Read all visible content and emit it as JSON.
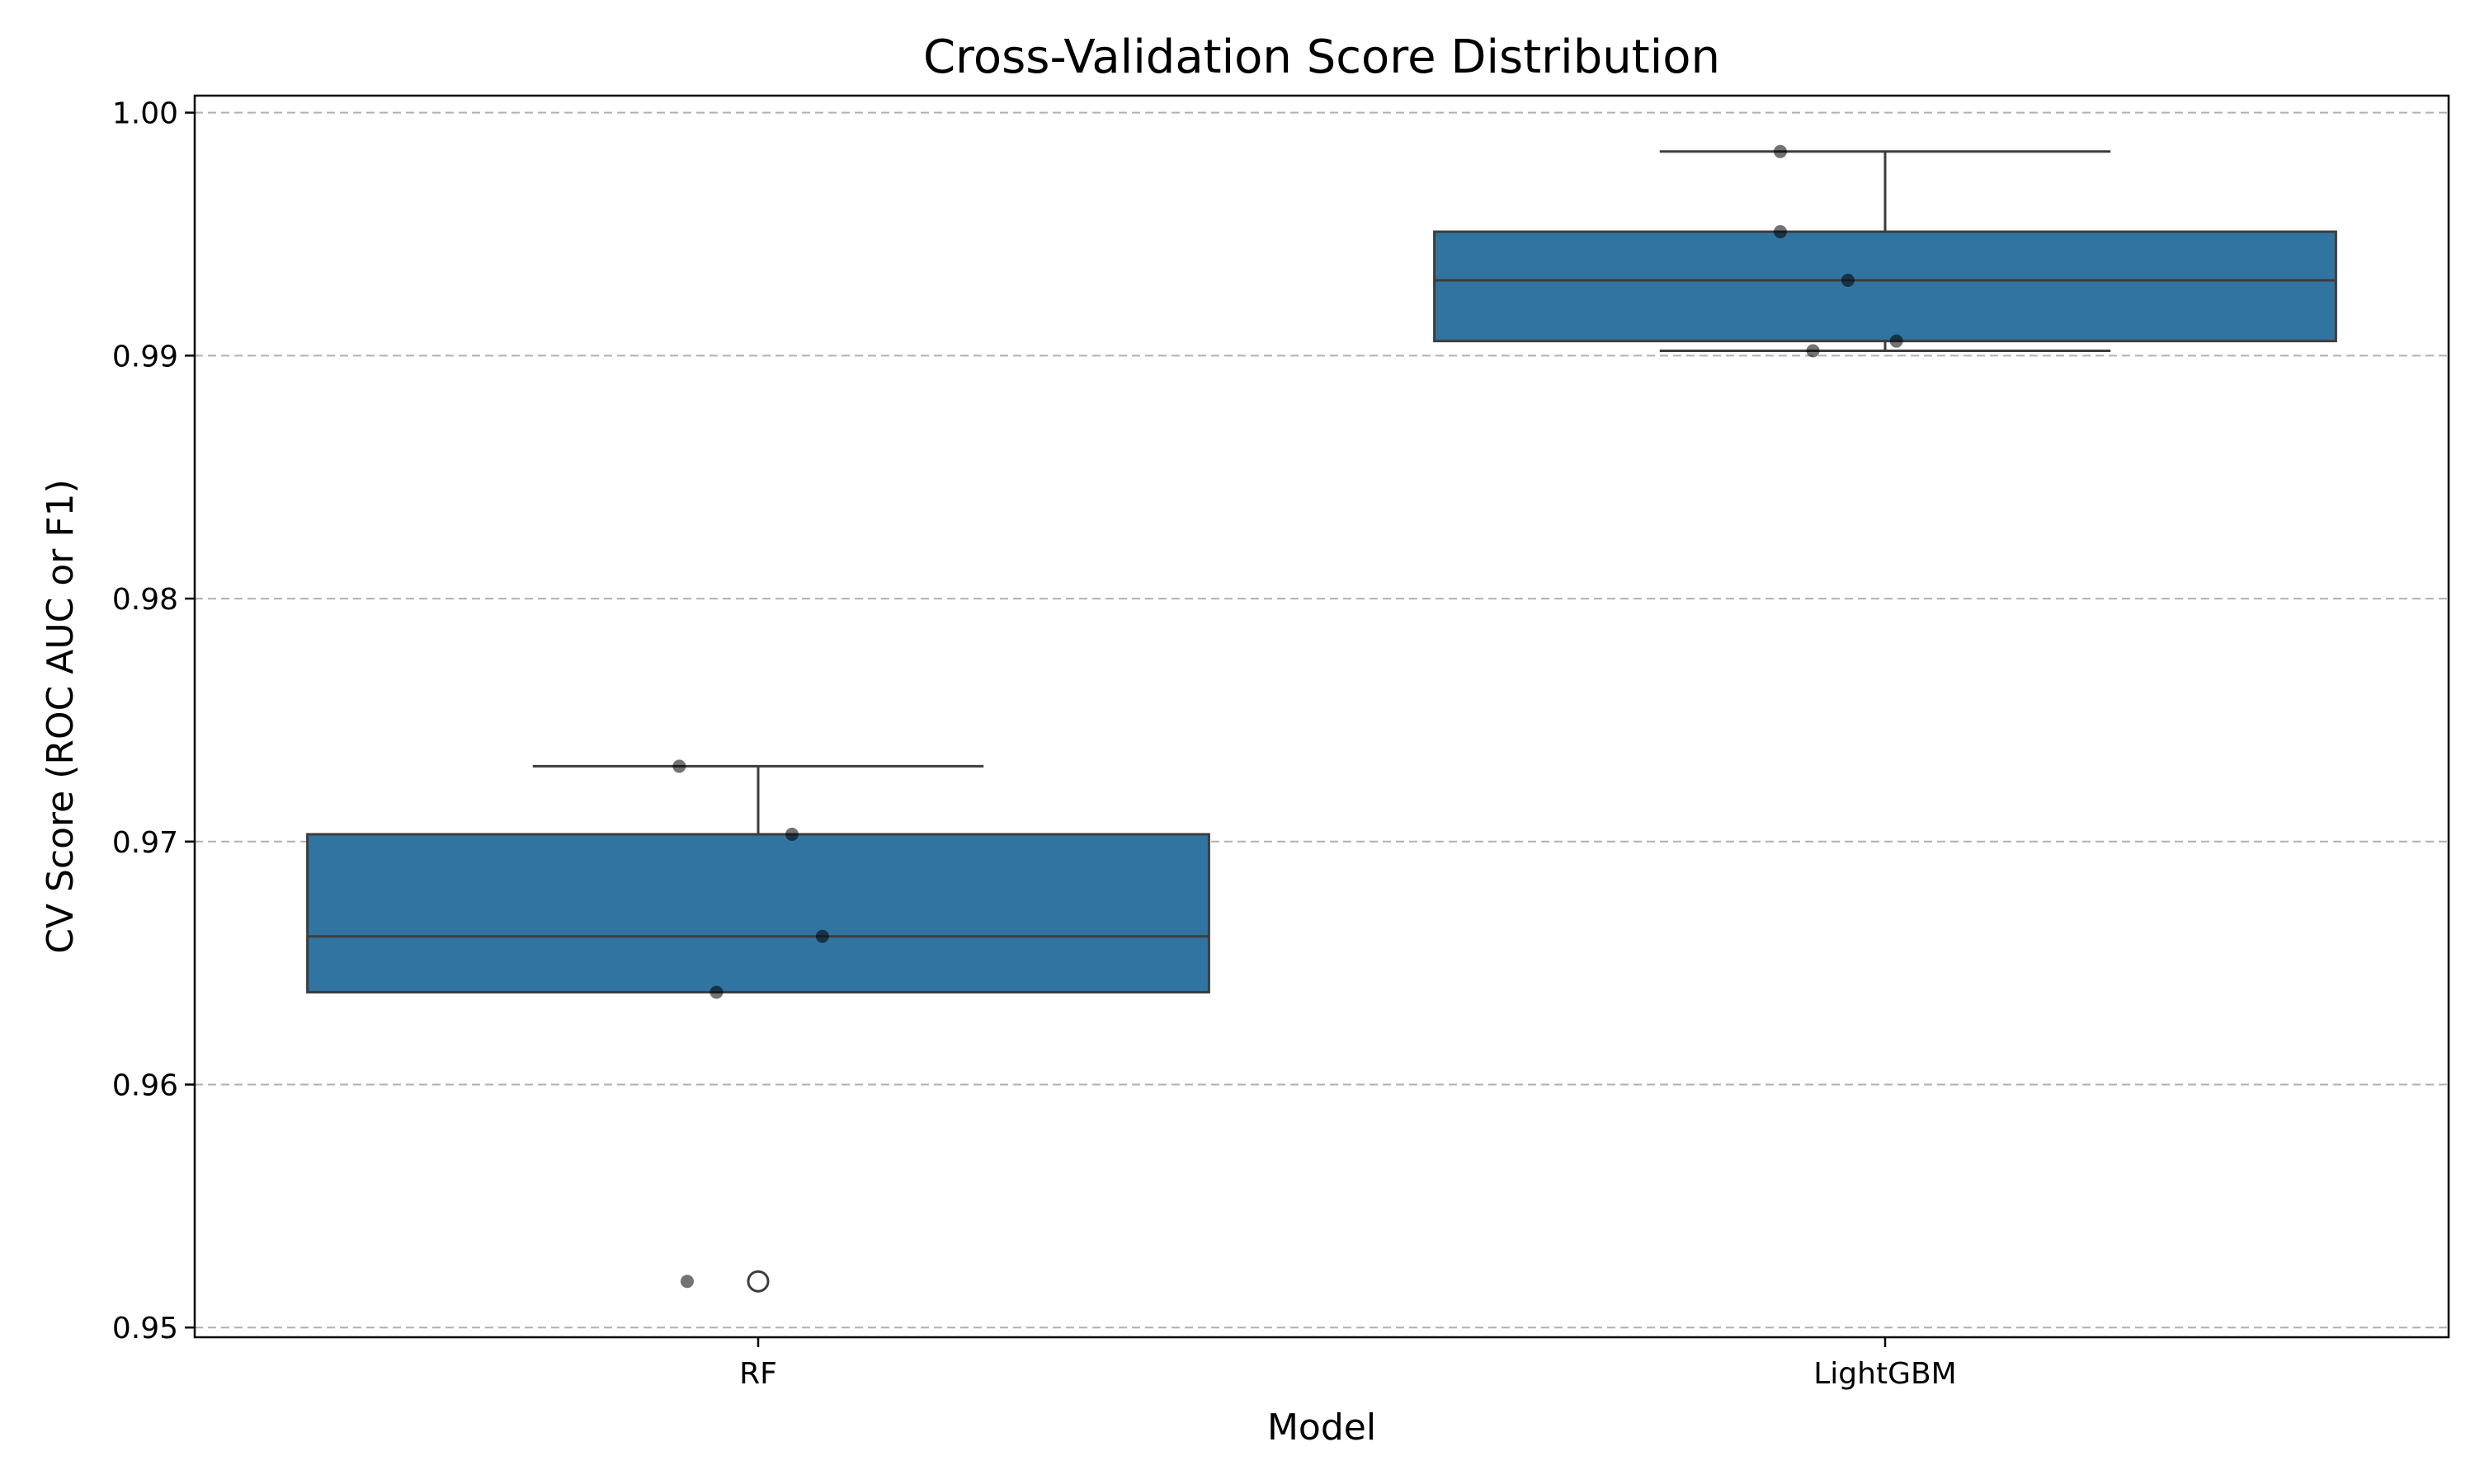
{
  "chart_data": {
    "type": "box",
    "title": "Cross-Validation Score Distribution",
    "xlabel": "Model",
    "ylabel": "CV Score (ROC AUC or F1)",
    "ylim": [
      0.9496,
      1.0007
    ],
    "yticks": [
      0.95,
      0.96,
      0.97,
      0.98,
      0.99,
      1.0
    ],
    "ytick_labels": [
      "0.95",
      "0.96",
      "0.97",
      "0.98",
      "0.99",
      "1.00"
    ],
    "grid": "y, dashed",
    "box_color": "#3274a1",
    "categories": [
      "RF",
      "LightGBM"
    ],
    "boxes": [
      {
        "name": "RF",
        "q1": 0.9638,
        "median": 0.9661,
        "q3": 0.9703,
        "whisker_low": 0.9638,
        "whisker_high": 0.9731,
        "outliers": [
          0.9519
        ],
        "points": [
          0.9731,
          0.9703,
          0.9661,
          0.9638,
          0.9519
        ]
      },
      {
        "name": "LightGBM",
        "q1": 0.9906,
        "median": 0.9931,
        "q3": 0.9951,
        "whisker_low": 0.9902,
        "whisker_high": 0.9984,
        "outliers": [],
        "points": [
          0.9984,
          0.9951,
          0.9931,
          0.9902,
          0.9906
        ]
      }
    ]
  }
}
